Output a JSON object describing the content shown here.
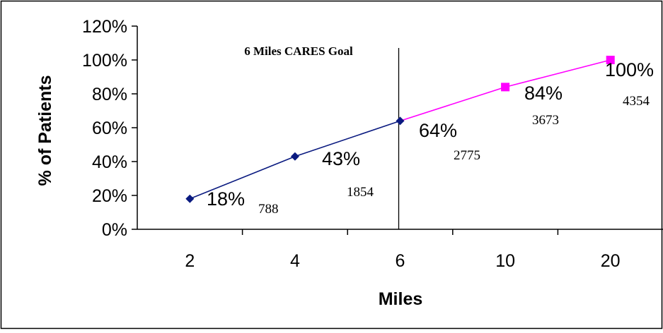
{
  "chart_data": {
    "type": "line",
    "title": "",
    "xlabel": "Miles",
    "ylabel": "% of Patients",
    "categories": [
      "2",
      "4",
      "6",
      "10",
      "20"
    ],
    "ylim": [
      0,
      120
    ],
    "yticks": [
      "0%",
      "20%",
      "40%",
      "60%",
      "80%",
      "100%",
      "120%"
    ],
    "ytick_values": [
      0,
      20,
      40,
      60,
      80,
      100,
      120
    ],
    "grid": false,
    "legend": "none",
    "series": [
      {
        "values": [
          18,
          43,
          64,
          84,
          100
        ],
        "percent_labels": [
          "18%",
          "43%",
          "64%",
          "84%",
          "100%"
        ],
        "count_labels": [
          "788",
          "1854",
          "2775",
          "3673",
          "4354"
        ]
      }
    ],
    "segment_colors": {
      "before_goal": "#0A1A80",
      "after_goal": "#FF00FF"
    },
    "goal": {
      "label": "6 Miles CARES Goal",
      "category": "6"
    }
  }
}
